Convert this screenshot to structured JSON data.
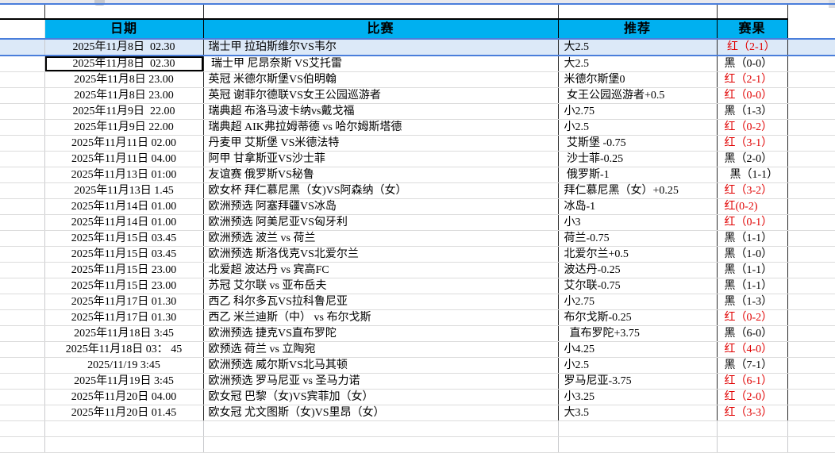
{
  "app": {
    "kind": "spreadsheet-betting-record"
  },
  "colors": {
    "header_bg": "#00B0F0",
    "selected_fill": "#DCE9F8",
    "selection_border": "#4A7EDB",
    "result_red": "#E00000",
    "result_black": "#000000",
    "gridline": "#DCDCDC"
  },
  "header": {
    "columns": [
      {
        "key": "date",
        "label": "日期"
      },
      {
        "key": "match",
        "label": "比赛"
      },
      {
        "key": "pick",
        "label": "推荐"
      },
      {
        "key": "result",
        "label": "赛果"
      }
    ]
  },
  "rows": [
    {
      "date": "2025年11月8日  02.30",
      "match": "瑞士甲 拉珀斯维尔VS韦尔",
      "pick": "大2.5",
      "result": " 红（2-1）",
      "result_color": "red",
      "selected": true
    },
    {
      "date": "2025年11月8日  02.30",
      "match": " 瑞士甲 尼昂奈斯 VS艾托雷",
      "pick": "大2.5",
      "result": "黑（0-0）",
      "result_color": "black",
      "active": true
    },
    {
      "date": "2025年11月8日 23.00",
      "match": "英冠 米德尔斯堡VS伯明翰",
      "pick": "米德尔斯堡0",
      "result": "红（2-1）",
      "result_color": "red"
    },
    {
      "date": "2025年11月8日 23.00",
      "match": "英冠 谢菲尔德联VS女王公园巡游者",
      "pick": " 女王公园巡游者+0.5",
      "result": "红（0-0）",
      "result_color": "red"
    },
    {
      "date": "2025年11月9日  22.00",
      "match": "瑞典超 布洛马波卡纳vs戴戈福",
      "pick": "小2.75",
      "result": "黑（1-3）",
      "result_color": "black"
    },
    {
      "date": "2025年11月9日 22.00",
      "match": "瑞典超 AIK弗拉姆蒂德 vs 哈尔姆斯塔德",
      "pick": "小2.5",
      "result": "红（0-2）",
      "result_color": "red"
    },
    {
      "date": "2025年11月11日 02.00",
      "match": "丹麦甲 艾斯堡 VS米德法特",
      "pick": " 艾斯堡 -0.75",
      "result": "红（3-1）",
      "result_color": "red"
    },
    {
      "date": "2025年11月11日 04.00",
      "match": "阿甲 甘拿斯亚VS沙士菲",
      "pick": " 沙士菲-0.25",
      "result": "黑（2-0）",
      "result_color": "black"
    },
    {
      "date": "2025年11月13日 01:00",
      "match": "友谊赛 俄罗斯VS秘鲁",
      "pick": " 俄罗斯-1",
      "result": "  黑（1-1）",
      "result_color": "black"
    },
    {
      "date": "2025年11月13日 1.45",
      "match": "欧女杯 拜仁慕尼黑（女)VS阿森纳（女）",
      "pick": "拜仁慕尼黑（女）+0.25",
      "result": "红（3-2）",
      "result_color": "red"
    },
    {
      "date": "2025年11月14日 01.00",
      "match": "欧洲预选 阿塞拜疆VS冰岛",
      "pick": "冰岛-1",
      "result": "红(0-2)",
      "result_color": "red"
    },
    {
      "date": "2025年11月14日 01.00",
      "match": "欧洲预选 阿美尼亚VS匈牙利",
      "pick": "小3",
      "result": "红（0-1）",
      "result_color": "red"
    },
    {
      "date": "2025年11月15日 03.45",
      "match": "欧洲预选 波兰 vs 荷兰",
      "pick": "荷兰-0.75",
      "result": "黑（1-1）",
      "result_color": "black"
    },
    {
      "date": "2025年11月15日 03.45",
      "match": "欧洲预选 斯洛伐克VS北爱尔兰",
      "pick": "北爱尔兰+0.5",
      "result": "黑（1-0）",
      "result_color": "black"
    },
    {
      "date": "2025年11月15日 23.00",
      "match": "北爱超 波达丹 vs 宾高FC",
      "pick": "波达丹-0.25",
      "result": "黑（1-1）",
      "result_color": "black"
    },
    {
      "date": "2025年11月15日 23.00",
      "match": "苏冠 艾尔联 vs 亚布岳夫",
      "pick": "艾尔联-0.75",
      "result": "黑（1-1）",
      "result_color": "black"
    },
    {
      "date": "2025年11月17日 01.30",
      "match": "西乙 科尔多瓦VS拉科鲁尼亚",
      "pick": "小2.75",
      "result": "黑（1-3）",
      "result_color": "black"
    },
    {
      "date": "2025年11月17日 01.30",
      "match": "西乙 米兰迪斯（中） vs 布尔戈斯",
      "pick": "布尔戈斯-0.25",
      "result": "红（0-2）",
      "result_color": "red"
    },
    {
      "date": "2025年11月18日 3:45",
      "match": "欧洲预选 捷克VS直布罗陀",
      "pick": "  直布罗陀+3.75",
      "result": "黑（6-0）",
      "result_color": "black"
    },
    {
      "date": "2025年11月18日 03： 45",
      "match": "欧预选 荷兰 vs 立陶宛",
      "pick": "小4.25",
      "result": "红（4-0）",
      "result_color": "red"
    },
    {
      "date": "2025/11/19 3:45",
      "match": "欧洲预选 威尔斯VS北马其顿",
      "pick": "小2.5",
      "result": "黑（7-1）",
      "result_color": "black"
    },
    {
      "date": "2025年11月19日 3:45",
      "match": "欧洲预选 罗马尼亚 vs 圣马力诺",
      "pick": "罗马尼亚-3.75",
      "result": "红（6-1）",
      "result_color": "red"
    },
    {
      "date": "2025年11月20日 04.00",
      "match": "欧女冠 巴黎（女)VS宾菲加（女）",
      "pick": "小3.25",
      "result": "红（2-0）",
      "result_color": "red"
    },
    {
      "date": "2025年11月20日 01.45",
      "match": "欧女冠 尤文图斯（女)VS里昂（女）",
      "pick": "大3.5",
      "result": "红（3-3）",
      "result_color": "red"
    }
  ]
}
